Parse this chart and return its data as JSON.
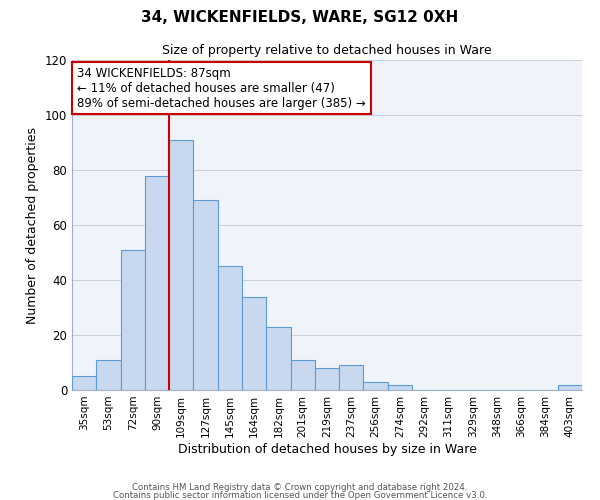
{
  "title": "34, WICKENFIELDS, WARE, SG12 0XH",
  "subtitle": "Size of property relative to detached houses in Ware",
  "xlabel": "Distribution of detached houses by size in Ware",
  "ylabel": "Number of detached properties",
  "bar_labels": [
    "35sqm",
    "53sqm",
    "72sqm",
    "90sqm",
    "109sqm",
    "127sqm",
    "145sqm",
    "164sqm",
    "182sqm",
    "201sqm",
    "219sqm",
    "237sqm",
    "256sqm",
    "274sqm",
    "292sqm",
    "311sqm",
    "329sqm",
    "348sqm",
    "366sqm",
    "384sqm",
    "403sqm"
  ],
  "bar_values": [
    5,
    11,
    51,
    78,
    91,
    69,
    45,
    34,
    23,
    11,
    8,
    9,
    3,
    2,
    0,
    0,
    0,
    0,
    0,
    0,
    2
  ],
  "bar_color": "#c8d9ef",
  "bar_edge_color": "#5b9bd5",
  "vline_x_index": 3.5,
  "vline_color": "#cc0000",
  "ylim": [
    0,
    120
  ],
  "yticks": [
    0,
    20,
    40,
    60,
    80,
    100,
    120
  ],
  "annotation_title": "34 WICKENFIELDS: 87sqm",
  "annotation_line1": "← 11% of detached houses are smaller (47)",
  "annotation_line2": "89% of semi-detached houses are larger (385) →",
  "annotation_box_color": "#ffffff",
  "annotation_box_edge": "#cc0000",
  "footer1": "Contains HM Land Registry data © Crown copyright and database right 2024.",
  "footer2": "Contains public sector information licensed under the Open Government Licence v3.0.",
  "bg_color": "#f0f4fa"
}
